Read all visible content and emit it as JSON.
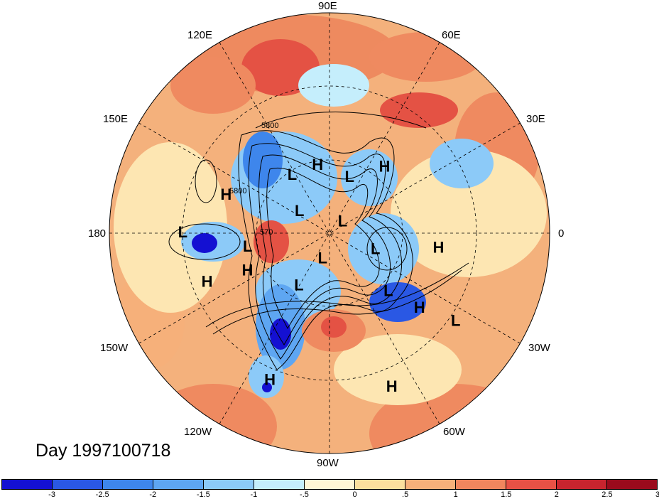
{
  "title": "Day 1997100718",
  "longitude_labels": {
    "n90e": "90E",
    "n120e": "120E",
    "n60e": "60E",
    "n150e": "150E",
    "n30e": "30E",
    "n180": "180",
    "n0": "0",
    "n150w": "150W",
    "n30w": "30W",
    "n120w": "120W",
    "n60w": "60W",
    "n90w": "90W"
  },
  "pressure_systems": [
    {
      "type": "H",
      "lon": 100,
      "lat": 62
    },
    {
      "type": "H",
      "lon": 50,
      "lat": 55
    },
    {
      "type": "H",
      "lon": 160,
      "lat": 45
    },
    {
      "type": "H",
      "lon": -8,
      "lat": 45
    },
    {
      "type": "H",
      "lon": -158,
      "lat": 36
    },
    {
      "type": "H",
      "lon": -155,
      "lat": 53
    },
    {
      "type": "H",
      "lon": -40,
      "lat": 42
    },
    {
      "type": "H",
      "lon": -112,
      "lat": 25
    },
    {
      "type": "H",
      "lon": -68,
      "lat": 22
    },
    {
      "type": "L",
      "lon": 123,
      "lat": 62
    },
    {
      "type": "L",
      "lon": 70,
      "lat": 66
    },
    {
      "type": "L",
      "lon": -170,
      "lat": 56
    },
    {
      "type": "L",
      "lon": 145,
      "lat": 75
    },
    {
      "type": "L",
      "lon": 40,
      "lat": 83
    },
    {
      "type": "L",
      "lon": -20,
      "lat": 70
    },
    {
      "type": "L",
      "lon": -120,
      "lat": 65
    },
    {
      "type": "L",
      "lon": -105,
      "lat": 79
    },
    {
      "type": "L",
      "lon": -45,
      "lat": 56
    },
    {
      "type": "L",
      "lon": -35,
      "lat": 27
    },
    {
      "type": "L",
      "lon": -180,
      "lat": 30
    }
  ],
  "contour_labels": [
    "5800",
    "5800",
    "570"
  ],
  "colorbar": {
    "colors": [
      "#1410d2",
      "#2a58e4",
      "#3e86ec",
      "#5ea6f2",
      "#8ccaf8",
      "#c5eefc",
      "#fff6d6",
      "#fbdf9e",
      "#f6b07a",
      "#f0865e",
      "#e75145",
      "#c8242e",
      "#9a0a1c"
    ],
    "ticks": [
      "-3",
      "-2.5",
      "-2",
      "-1.5",
      "-1",
      "-.5",
      "0",
      ".5",
      "1",
      "1.5",
      "2",
      "2.5",
      "3"
    ]
  }
}
